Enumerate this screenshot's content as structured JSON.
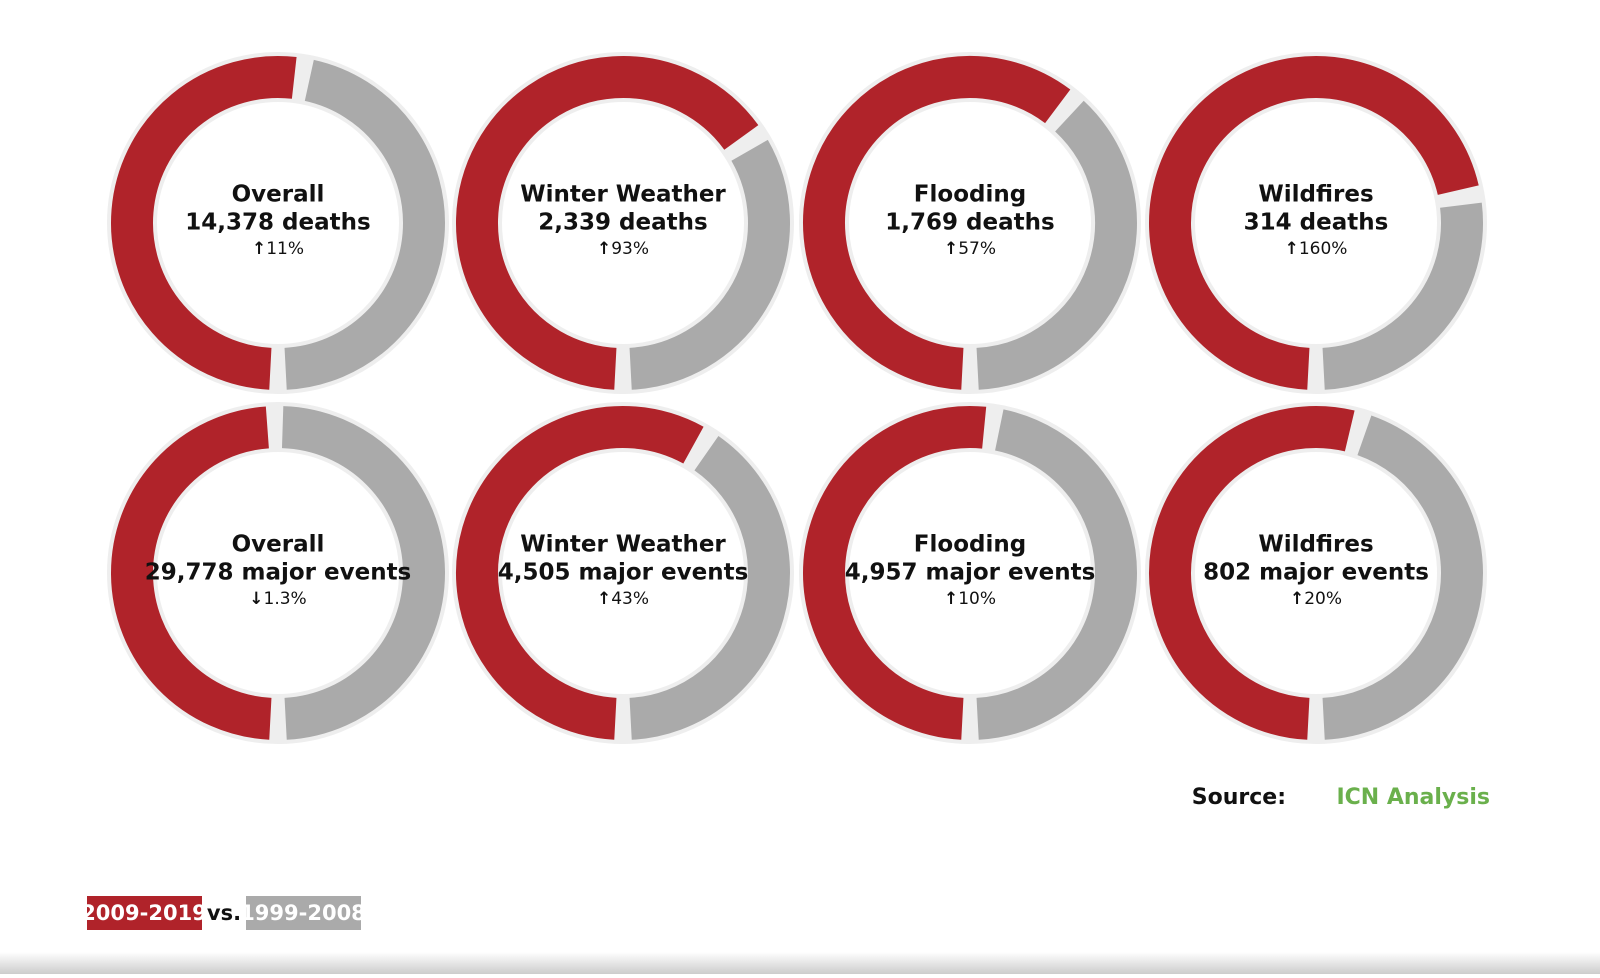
{
  "chart_data": {
    "type": "donut",
    "colors": [
      "#b0232a",
      "#aaaaaa"
    ],
    "legend": [
      "2009-2019",
      "1999-2008"
    ],
    "legend_joiner": "vs.",
    "source_label": "Source:",
    "source": "ICN Analysis",
    "panels": [
      {
        "label": "Overall",
        "total": {
          "value": 14378,
          "label": "14,378 deaths"
        },
        "change": {
          "value": 11,
          "label": "11%"
        }
      },
      {
        "label": "Winter Weather",
        "total": {
          "value": 2339,
          "label": "2,339 deaths"
        },
        "change": {
          "value": 93,
          "label": "93%"
        }
      },
      {
        "label": "Flooding",
        "total": {
          "value": 1769,
          "label": "1,769 deaths"
        },
        "change": {
          "value": 57,
          "label": "57%"
        }
      },
      {
        "label": "Wildfires",
        "total": {
          "value": 314,
          "label": "314 deaths"
        },
        "change": {
          "value": 160,
          "label": "160%"
        }
      },
      {
        "label": "Overall",
        "total": {
          "value": 29778,
          "label": "29,778 major events"
        },
        "change": {
          "value": -1.3,
          "label": "1.3%"
        }
      },
      {
        "label": "Winter Weather",
        "total": {
          "value": 4505,
          "label": "4,505 major events"
        },
        "change": {
          "value": 43,
          "label": "43%"
        }
      },
      {
        "label": "Flooding",
        "total": {
          "value": 4957,
          "label": "4,957 major events"
        },
        "change": {
          "value": 10,
          "label": "10%"
        }
      },
      {
        "label": "Wildfires",
        "total": {
          "value": 802,
          "label": "802 major events"
        },
        "change": {
          "value": 20,
          "label": "20%"
        }
      }
    ]
  }
}
